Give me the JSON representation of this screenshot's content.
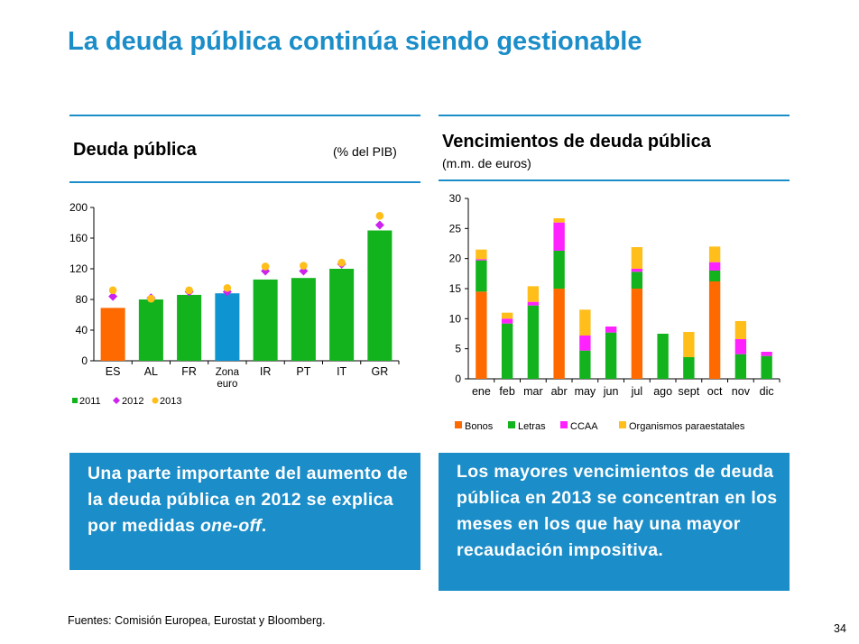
{
  "page": {
    "title": "La deuda pública continúa siendo gestionable",
    "footer": "Fuentes: Comisión Europea, Eurostat y Bloomberg.",
    "page_number": "34"
  },
  "left_panel": {
    "title": "Deuda pública",
    "unit": "(% del PIB)",
    "note_parts": [
      "Una parte importante del aumento de la deuda pública en 2012 se explica por medidas ",
      "one-off",
      "."
    ]
  },
  "right_panel": {
    "title": "Vencimientos de deuda pública",
    "unit": "(m.m. de euros)",
    "note": "Los mayores vencimientos de deuda pública en 2013 se concentran en los meses en los que hay una mayor recaudación impositiva."
  },
  "colors": {
    "brand_blue": "#1b8dc8",
    "green": "#12b31d",
    "orange": "#ff6a00",
    "magenta": "#ff22ff",
    "magenta_marker": "#cc22ee",
    "gold": "#ffbe1a",
    "blue_bar": "#0d94d1"
  },
  "chart_data": [
    {
      "type": "bar",
      "title": "Deuda pública",
      "ylabel": "(% del PIB)",
      "categories": [
        "ES",
        "AL",
        "FR",
        "Zona\neuro",
        "IR",
        "PT",
        "IT",
        "GR"
      ],
      "ylim": [
        0,
        200
      ],
      "yticks": [
        0,
        40,
        80,
        120,
        160,
        200
      ],
      "bar_series": "2011",
      "bar_colors": [
        "#ff6a00",
        "#12b31d",
        "#12b31d",
        "#0d94d1",
        "#12b31d",
        "#12b31d",
        "#12b31d",
        "#12b31d"
      ],
      "series": [
        {
          "name": "2011",
          "values": [
            69,
            80,
            86,
            88,
            106,
            108,
            120,
            170
          ],
          "color": "#12b31d",
          "marker": "square"
        },
        {
          "name": "2012",
          "values": [
            84,
            82,
            90,
            90,
            117,
            117,
            126,
            177
          ],
          "color": "#cc22ee",
          "marker": "diamond"
        },
        {
          "name": "2013",
          "values": [
            92,
            81,
            92,
            95,
            123,
            124,
            128,
            189
          ],
          "color": "#ffbe1a",
          "marker": "circle"
        }
      ],
      "legend": [
        "2011",
        "2012",
        "2013"
      ],
      "legend_position": "bottom-left",
      "grid": false
    },
    {
      "type": "bar",
      "stacked": true,
      "title": "Vencimientos de deuda pública",
      "ylabel": "(m.m. de euros)",
      "categories": [
        "ene",
        "feb",
        "mar",
        "abr",
        "may",
        "jun",
        "jul",
        "ago",
        "sept",
        "oct",
        "nov",
        "dic"
      ],
      "ylim": [
        0,
        30
      ],
      "yticks": [
        0,
        5,
        10,
        15,
        20,
        25,
        30
      ],
      "series": [
        {
          "name": "Bonos",
          "color": "#ff6a00",
          "values": [
            14.5,
            0,
            0,
            15,
            0,
            0,
            15,
            0,
            0,
            16.2,
            0,
            0
          ]
        },
        {
          "name": "Letras",
          "color": "#12b31d",
          "values": [
            5.2,
            9.2,
            12.2,
            6.3,
            4.7,
            7.7,
            2.8,
            7.5,
            3.6,
            1.8,
            4.1,
            3.8
          ]
        },
        {
          "name": "CCAA",
          "color": "#ff22ff",
          "values": [
            0.2,
            0.8,
            0.6,
            4.7,
            2.5,
            1.0,
            0.5,
            0,
            0,
            1.4,
            2.5,
            0.7
          ]
        },
        {
          "name": "Organismos paraestatales",
          "color": "#ffbe1a",
          "values": [
            1.6,
            1.0,
            2.6,
            0.7,
            4.3,
            0,
            3.6,
            0,
            4.2,
            2.6,
            3.0,
            0
          ]
        }
      ],
      "legend_position": "bottom",
      "grid": false
    }
  ]
}
